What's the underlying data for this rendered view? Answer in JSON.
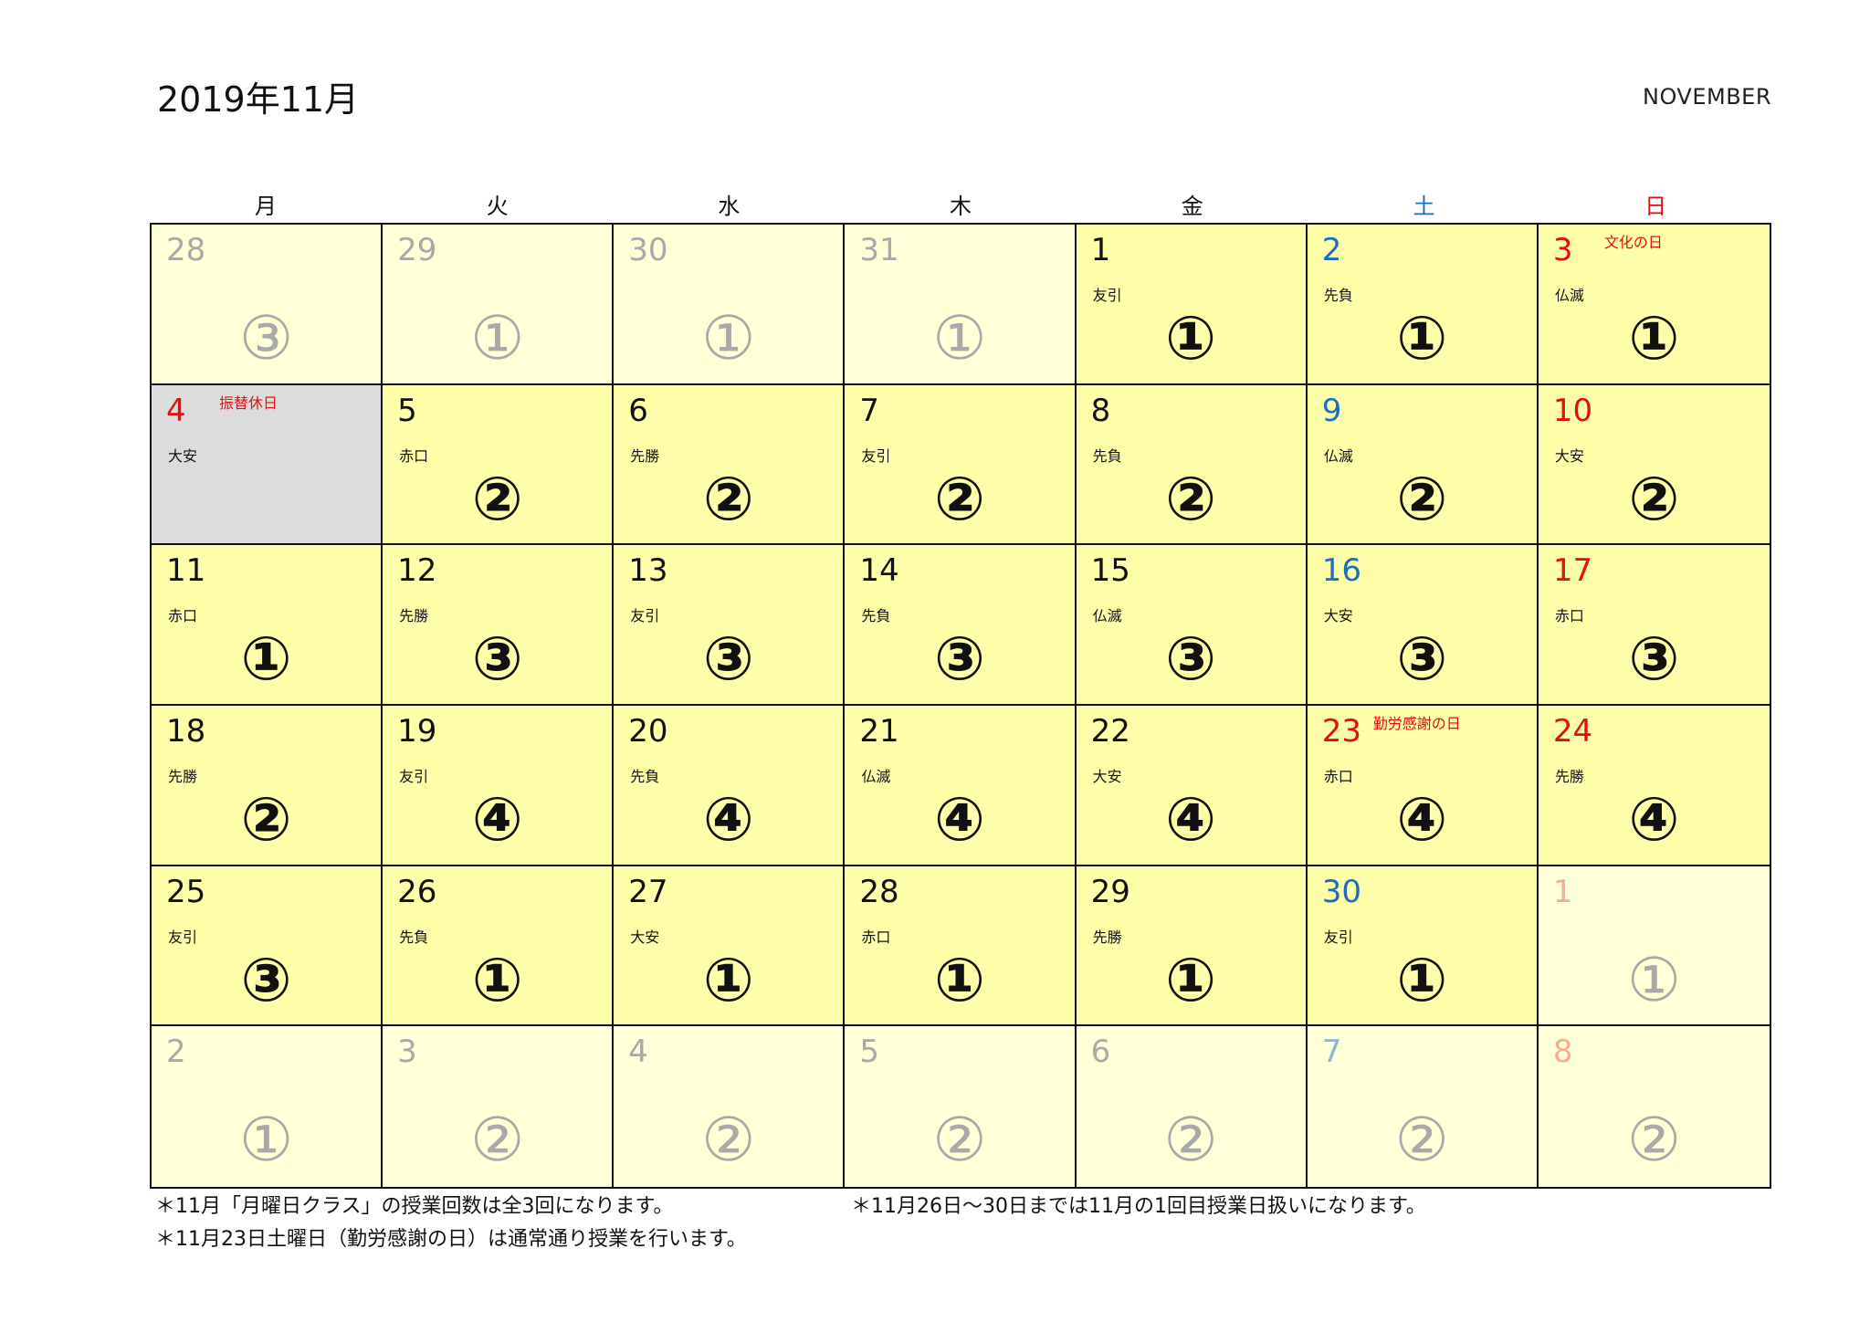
{
  "header": {
    "title": "2019年11月",
    "subtitle": "NOVEMBER"
  },
  "weekdays": [
    "月",
    "火",
    "水",
    "木",
    "金",
    "土",
    "日"
  ],
  "cells": [
    {
      "day": "28",
      "rokuyo": "",
      "mark": "③",
      "out": true,
      "holiday": ""
    },
    {
      "day": "29",
      "rokuyo": "",
      "mark": "①",
      "out": true,
      "holiday": ""
    },
    {
      "day": "30",
      "rokuyo": "",
      "mark": "①",
      "out": true,
      "holiday": ""
    },
    {
      "day": "31",
      "rokuyo": "",
      "mark": "①",
      "out": true,
      "holiday": ""
    },
    {
      "day": "1",
      "rokuyo": "友引",
      "mark": "①",
      "out": false,
      "holiday": ""
    },
    {
      "day": "2",
      "rokuyo": "先負",
      "mark": "①",
      "out": false,
      "holiday": ""
    },
    {
      "day": "3",
      "rokuyo": "仏滅",
      "mark": "①",
      "out": false,
      "holiday": "文化の日"
    },
    {
      "day": "4",
      "rokuyo": "大安",
      "mark": "",
      "out": false,
      "holiday": "振替休日",
      "gray": true
    },
    {
      "day": "5",
      "rokuyo": "赤口",
      "mark": "②",
      "out": false,
      "holiday": ""
    },
    {
      "day": "6",
      "rokuyo": "先勝",
      "mark": "②",
      "out": false,
      "holiday": ""
    },
    {
      "day": "7",
      "rokuyo": "友引",
      "mark": "②",
      "out": false,
      "holiday": ""
    },
    {
      "day": "8",
      "rokuyo": "先負",
      "mark": "②",
      "out": false,
      "holiday": ""
    },
    {
      "day": "9",
      "rokuyo": "仏滅",
      "mark": "②",
      "out": false,
      "holiday": ""
    },
    {
      "day": "10",
      "rokuyo": "大安",
      "mark": "②",
      "out": false,
      "holiday": ""
    },
    {
      "day": "11",
      "rokuyo": "赤口",
      "mark": "①",
      "out": false,
      "holiday": ""
    },
    {
      "day": "12",
      "rokuyo": "先勝",
      "mark": "③",
      "out": false,
      "holiday": ""
    },
    {
      "day": "13",
      "rokuyo": "友引",
      "mark": "③",
      "out": false,
      "holiday": ""
    },
    {
      "day": "14",
      "rokuyo": "先負",
      "mark": "③",
      "out": false,
      "holiday": ""
    },
    {
      "day": "15",
      "rokuyo": "仏滅",
      "mark": "③",
      "out": false,
      "holiday": ""
    },
    {
      "day": "16",
      "rokuyo": "大安",
      "mark": "③",
      "out": false,
      "holiday": ""
    },
    {
      "day": "17",
      "rokuyo": "赤口",
      "mark": "③",
      "out": false,
      "holiday": ""
    },
    {
      "day": "18",
      "rokuyo": "先勝",
      "mark": "②",
      "out": false,
      "holiday": ""
    },
    {
      "day": "19",
      "rokuyo": "友引",
      "mark": "④",
      "out": false,
      "holiday": ""
    },
    {
      "day": "20",
      "rokuyo": "先負",
      "mark": "④",
      "out": false,
      "holiday": ""
    },
    {
      "day": "21",
      "rokuyo": "仏滅",
      "mark": "④",
      "out": false,
      "holiday": ""
    },
    {
      "day": "22",
      "rokuyo": "大安",
      "mark": "④",
      "out": false,
      "holiday": ""
    },
    {
      "day": "23",
      "rokuyo": "赤口",
      "mark": "④",
      "out": false,
      "holiday": "勤労感謝の日",
      "redday": true
    },
    {
      "day": "24",
      "rokuyo": "先勝",
      "mark": "④",
      "out": false,
      "holiday": ""
    },
    {
      "day": "25",
      "rokuyo": "友引",
      "mark": "③",
      "out": false,
      "holiday": ""
    },
    {
      "day": "26",
      "rokuyo": "先負",
      "mark": "①",
      "out": false,
      "holiday": ""
    },
    {
      "day": "27",
      "rokuyo": "大安",
      "mark": "①",
      "out": false,
      "holiday": ""
    },
    {
      "day": "28",
      "rokuyo": "赤口",
      "mark": "①",
      "out": false,
      "holiday": ""
    },
    {
      "day": "29",
      "rokuyo": "先勝",
      "mark": "①",
      "out": false,
      "holiday": ""
    },
    {
      "day": "30",
      "rokuyo": "友引",
      "mark": "①",
      "out": false,
      "holiday": ""
    },
    {
      "day": "1",
      "rokuyo": "",
      "mark": "①",
      "out": true,
      "holiday": ""
    },
    {
      "day": "2",
      "rokuyo": "",
      "mark": "①",
      "out": true,
      "holiday": ""
    },
    {
      "day": "3",
      "rokuyo": "",
      "mark": "②",
      "out": true,
      "holiday": ""
    },
    {
      "day": "4",
      "rokuyo": "",
      "mark": "②",
      "out": true,
      "holiday": ""
    },
    {
      "day": "5",
      "rokuyo": "",
      "mark": "②",
      "out": true,
      "holiday": ""
    },
    {
      "day": "6",
      "rokuyo": "",
      "mark": "②",
      "out": true,
      "holiday": ""
    },
    {
      "day": "7",
      "rokuyo": "",
      "mark": "②",
      "out": true,
      "holiday": ""
    },
    {
      "day": "8",
      "rokuyo": "",
      "mark": "②",
      "out": true,
      "holiday": ""
    }
  ],
  "notes": {
    "left_1": "＊11月「月曜日クラス」の授業回数は全3回になります。",
    "left_2": "＊11月23日土曜日（勤労感謝の日）は通常通り授業を行います。",
    "right_1": "＊11月26日～30日までは11月の1回目授業日扱いになります。"
  },
  "colors": {
    "in_month_bg": "#ffffaa",
    "out_month_bg": "#ffffd8",
    "substitute_holiday_bg": "#dcdcdc",
    "saturday": "#1a6fbd",
    "sunday_holiday": "#e01010",
    "muted": "#a9a9a9"
  }
}
